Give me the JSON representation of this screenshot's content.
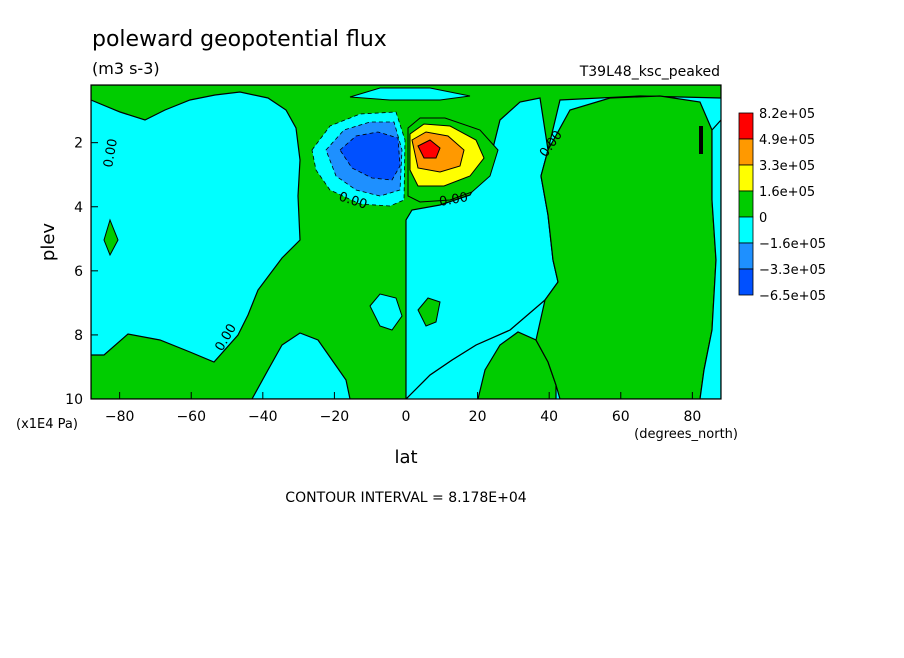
{
  "chart_data": {
    "type": "contour",
    "title": "poleward geopotential flux",
    "subtitle": "(m3 s-3)",
    "experiment_label": "T39L48_ksc_peaked",
    "xlabel": "lat",
    "ylabel": "plev",
    "x_units": "(degrees_north)",
    "y_units": "(x1E4 Pa)",
    "xlim": [
      -88,
      88
    ],
    "ylim": [
      10,
      0.2
    ],
    "y_axis_inverted": true,
    "x_ticks": [
      -80,
      -60,
      -40,
      -20,
      0,
      20,
      40,
      60,
      80
    ],
    "y_ticks": [
      2,
      4,
      6,
      8,
      10
    ],
    "contour_interval_text": "CONTOUR INTERVAL = 8.178E+04",
    "contour_labels": [
      "0.00",
      "0.00",
      "0.00",
      "0.00",
      "0.00"
    ],
    "colorbar": {
      "labels": [
        "8.2e+05",
        "4.9e+05",
        "3.3e+05",
        "1.6e+05",
        "0",
        "−1.6e+05",
        "−3.3e+05",
        "−6.5e+05"
      ],
      "colors": [
        "#ff0000",
        "#ff9900",
        "#ffff00",
        "#00cc00",
        "#00ffff",
        "#1e90ff",
        "#0050ff"
      ]
    },
    "features": [
      {
        "kind": "max",
        "lat": 6,
        "plev": 2.1,
        "value": 820000
      },
      {
        "kind": "min",
        "lat": -8,
        "plev": 2.2,
        "value": -650000
      }
    ]
  }
}
